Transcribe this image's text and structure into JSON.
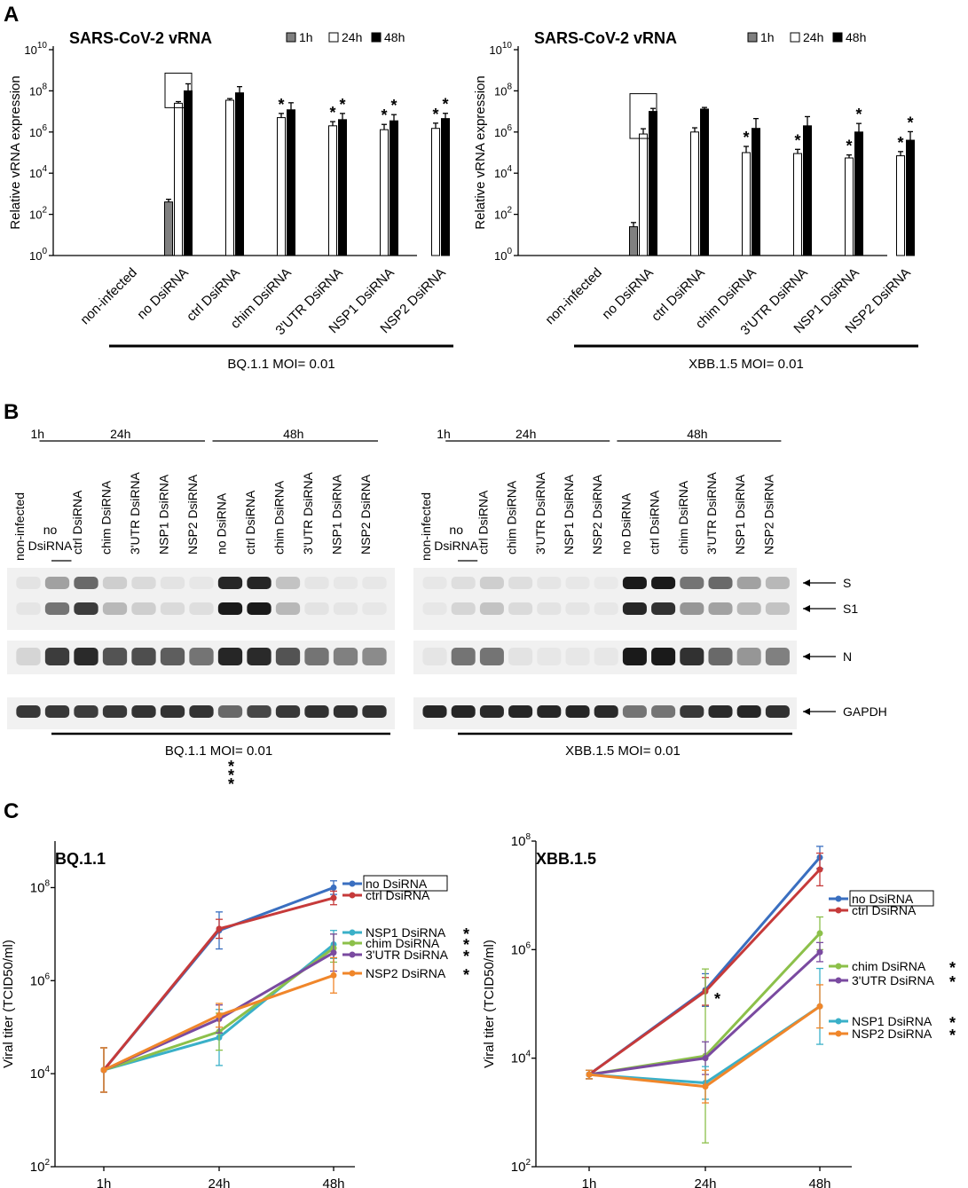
{
  "panel_labels": [
    "A",
    "B",
    "C"
  ],
  "colors": {
    "bar_1h": "#808080",
    "bar_24h": "#ffffff",
    "bar_48h": "#000000",
    "no_dsirna": "#3a6fc0",
    "ctrl_dsirna": "#c63a3a",
    "nsp1_dsirna": "#3ab0c8",
    "chim_dsirna": "#8cc04a",
    "utr_dsirna": "#7a4aa0",
    "nsp2_dsirna": "#f0862a"
  },
  "chart_data": [
    {
      "panel": "A",
      "type": "bar",
      "title": "SARS-CoV-2 vRNA",
      "ylabel": "Relative vRNA expression",
      "yscale": "log10",
      "ylim_exp": [
        0,
        10
      ],
      "yticks": [
        {
          "b": "10",
          "e": "0"
        },
        {
          "b": "10",
          "e": "2"
        },
        {
          "b": "10",
          "e": "4"
        },
        {
          "b": "10",
          "e": "6"
        },
        {
          "b": "10",
          "e": "8"
        },
        {
          "b": "10",
          "e": "10"
        }
      ],
      "legend": [
        "1h",
        "24h",
        "48h"
      ],
      "categories": [
        "non-infected",
        "no DsiRNA",
        "ctrl DsiRNA",
        "chim DsiRNA",
        "3'UTR DsiRNA",
        "NSP1 DsiRNA",
        "NSP2 DsiRNA"
      ],
      "series": [
        {
          "name": "1h",
          "values": [
            null,
            400,
            null,
            null,
            null,
            null,
            null
          ],
          "err": [
            null,
            1.35,
            null,
            null,
            null,
            null,
            null
          ]
        },
        {
          "name": "24h",
          "values": [
            null,
            25000000.0,
            35000000.0,
            5000000.0,
            2000000.0,
            1300000.0,
            1500000.0
          ],
          "err": [
            null,
            1.2,
            1.2,
            1.6,
            1.6,
            1.8,
            1.8
          ]
        },
        {
          "name": "48h",
          "values": [
            null,
            100000000.0,
            80000000.0,
            12000000.0,
            4000000.0,
            3500000.0,
            4500000.0
          ],
          "err": [
            null,
            2.2,
            2.0,
            2.2,
            2.0,
            2.0,
            1.8
          ]
        }
      ],
      "significant": [
        {
          "cat": 3,
          "series": [
            1
          ]
        },
        {
          "cat": 4,
          "series": [
            1,
            2
          ]
        },
        {
          "cat": 5,
          "series": [
            1,
            2
          ]
        },
        {
          "cat": 6,
          "series": [
            1,
            2
          ]
        }
      ],
      "boxed_category": 1,
      "condition": "BQ.1.1 MOI= 0.01"
    },
    {
      "panel": "A",
      "type": "bar",
      "title": "SARS-CoV-2 vRNA",
      "ylabel": "Relative vRNA expression",
      "yscale": "log10",
      "ylim_exp": [
        0,
        10
      ],
      "yticks": [
        {
          "b": "10",
          "e": "0"
        },
        {
          "b": "10",
          "e": "2"
        },
        {
          "b": "10",
          "e": "4"
        },
        {
          "b": "10",
          "e": "6"
        },
        {
          "b": "10",
          "e": "8"
        },
        {
          "b": "10",
          "e": "10"
        }
      ],
      "legend": [
        "1h",
        "24h",
        "48h"
      ],
      "categories": [
        "non-infected",
        "no DsiRNA",
        "ctrl DsiRNA",
        "chim DsiRNA",
        "3'UTR DsiRNA",
        "NSP1 DsiRNA",
        "NSP2 DsiRNA"
      ],
      "series": [
        {
          "name": "1h",
          "values": [
            1,
            25,
            null,
            null,
            null,
            null,
            null
          ],
          "err": [
            null,
            1.6,
            null,
            null,
            null,
            null,
            null
          ]
        },
        {
          "name": "24h",
          "values": [
            1,
            800000.0,
            1000000.0,
            100000.0,
            90000.0,
            55000.0,
            70000.0
          ],
          "err": [
            null,
            1.8,
            1.6,
            2.0,
            1.6,
            1.4,
            1.6
          ]
        },
        {
          "name": "48h",
          "values": [
            1,
            10000000.0,
            13000000.0,
            1500000.0,
            2000000.0,
            1000000.0,
            400000.0
          ],
          "err": [
            null,
            1.4,
            1.2,
            3.0,
            2.8,
            2.6,
            2.6
          ]
        }
      ],
      "significant": [
        {
          "cat": 3,
          "series": [
            1
          ]
        },
        {
          "cat": 4,
          "series": [
            1
          ]
        },
        {
          "cat": 5,
          "series": [
            1,
            2
          ]
        },
        {
          "cat": 6,
          "series": [
            1,
            2
          ]
        }
      ],
      "boxed_category": 1,
      "condition": "XBB.1.5 MOI= 0.01"
    },
    {
      "panel": "C",
      "type": "line",
      "title": "BQ.1.1",
      "ylabel": "Viral titer (TCID50/ml)",
      "yscale": "log10",
      "ylim_exp": [
        2,
        9
      ],
      "yticks": [
        {
          "b": "10",
          "e": "2"
        },
        {
          "b": "10",
          "e": "4"
        },
        {
          "b": "10",
          "e": "6"
        },
        {
          "b": "10",
          "e": "8"
        }
      ],
      "x": [
        "1h",
        "24h",
        "48h"
      ],
      "series": [
        {
          "name": "no DsiRNA",
          "sig": "",
          "boxed": true,
          "values": [
            12000.0,
            12000000.0,
            100000000.0
          ],
          "err": [
            3,
            2.5,
            1.4
          ]
        },
        {
          "name": "ctrl DsiRNA",
          "sig": "",
          "boxed": false,
          "values": [
            12000.0,
            13000000.0,
            60000000.0
          ],
          "err": [
            3,
            1.6,
            1.4
          ]
        },
        {
          "name": "NSP1 DsiRNA",
          "sig": "*",
          "boxed": false,
          "values": [
            12000.0,
            60000.0,
            6000000.0
          ],
          "err": [
            3,
            4,
            2.0
          ]
        },
        {
          "name": "chim DsiRNA",
          "sig": "*",
          "boxed": false,
          "values": [
            12000.0,
            80000.0,
            5000000.0
          ],
          "err": [
            3,
            2.5,
            2.0
          ]
        },
        {
          "name": "3'UTR DsiRNA",
          "sig": "*",
          "boxed": false,
          "values": [
            12000.0,
            150000.0,
            4000000.0
          ],
          "err": [
            3,
            2.0,
            2.5
          ]
        },
        {
          "name": "NSP2 DsiRNA",
          "sig": "*",
          "boxed": false,
          "values": [
            12000.0,
            180000.0,
            1300000.0
          ],
          "err": [
            3,
            1.8,
            2.4
          ]
        }
      ],
      "sig_at_24h": [
        "*",
        "*",
        "*"
      ]
    },
    {
      "panel": "C",
      "type": "line",
      "title": "XBB.1.5",
      "ylabel": "Viral titer (TCID50/ml)",
      "yscale": "log10",
      "ylim_exp": [
        2,
        8
      ],
      "yticks": [
        {
          "b": "10",
          "e": "2"
        },
        {
          "b": "10",
          "e": "4"
        },
        {
          "b": "10",
          "e": "6"
        },
        {
          "b": "10",
          "e": "8"
        }
      ],
      "x": [
        "1h",
        "24h",
        "48h"
      ],
      "series": [
        {
          "name": "no DsiRNA",
          "sig": "",
          "boxed": true,
          "values": [
            5000.0,
            180000.0,
            50000000.0
          ],
          "err": [
            1.2,
            2.0,
            1.6
          ]
        },
        {
          "name": "ctrl DsiRNA",
          "sig": "",
          "boxed": false,
          "values": [
            5000.0,
            170000.0,
            30000000.0
          ],
          "err": [
            1.2,
            1.8,
            2.0
          ]
        },
        {
          "name": "chim DsiRNA",
          "sig": "*",
          "boxed": false,
          "values": [
            5000.0,
            11000.0,
            2000000.0
          ],
          "err": [
            1.2,
            40,
            2.0
          ]
        },
        {
          "name": "3'UTR DsiRNA",
          "sig": "*",
          "boxed": false,
          "values": [
            5000.0,
            10000.0,
            900000.0
          ],
          "err": [
            1.2,
            2.0,
            1.5
          ]
        },
        {
          "name": "NSP1 DsiRNA",
          "sig": "*",
          "boxed": false,
          "values": [
            5000.0,
            3500.0,
            90000.0
          ],
          "err": [
            1.2,
            2.0,
            5.0
          ]
        },
        {
          "name": "NSP2 DsiRNA",
          "sig": "*",
          "boxed": false,
          "values": [
            5000.0,
            3000.0,
            90000.0
          ],
          "err": [
            1.2,
            2.0,
            2.5
          ]
        }
      ],
      "sig_at_24h": [
        "*"
      ]
    }
  ],
  "western_blot": {
    "lane_labels": [
      "non-infected",
      "no DsiRNA",
      "ctrl DsiRNA",
      "chim DsiRNA",
      "3'UTR DsiRNA",
      "NSP1 DsiRNA",
      "NSP2 DsiRNA",
      "no DsiRNA",
      "ctrl DsiRNA",
      "chim DsiRNA",
      "3'UTR DsiRNA",
      "NSP1 DsiRNA",
      "NSP2 DsiRNA"
    ],
    "no_dsirna_split": [
      "no",
      "DsiRNA"
    ],
    "timepoints": [
      "1h",
      "24h",
      "48h"
    ],
    "bands": [
      "S",
      "S1",
      "N",
      "GAPDH"
    ],
    "blots": [
      {
        "condition": "BQ.1.1 MOI= 0.01",
        "S": [
          0.06,
          0.35,
          0.6,
          0.15,
          0.1,
          0.06,
          0.04,
          0.9,
          0.9,
          0.2,
          0.05,
          0.04,
          0.04
        ],
        "S1": [
          0.05,
          0.55,
          0.8,
          0.25,
          0.15,
          0.1,
          0.08,
          0.95,
          0.95,
          0.25,
          0.06,
          0.05,
          0.04
        ],
        "N": [
          0.12,
          0.8,
          0.88,
          0.7,
          0.72,
          0.65,
          0.55,
          0.9,
          0.88,
          0.7,
          0.55,
          0.5,
          0.45
        ],
        "GAPDH": [
          0.82,
          0.82,
          0.8,
          0.82,
          0.84,
          0.84,
          0.84,
          0.6,
          0.75,
          0.82,
          0.85,
          0.85,
          0.85
        ]
      },
      {
        "condition": "XBB.1.5 MOI= 0.01",
        "S": [
          0.04,
          0.08,
          0.15,
          0.08,
          0.05,
          0.04,
          0.03,
          0.95,
          0.95,
          0.55,
          0.6,
          0.35,
          0.25
        ],
        "S1": [
          0.04,
          0.12,
          0.2,
          0.1,
          0.06,
          0.05,
          0.04,
          0.9,
          0.85,
          0.4,
          0.35,
          0.25,
          0.2
        ],
        "N": [
          0.05,
          0.55,
          0.55,
          0.06,
          0.04,
          0.04,
          0.04,
          0.95,
          0.95,
          0.85,
          0.6,
          0.4,
          0.5
        ],
        "GAPDH": [
          0.9,
          0.9,
          0.88,
          0.9,
          0.9,
          0.9,
          0.88,
          0.55,
          0.55,
          0.82,
          0.88,
          0.9,
          0.85
        ]
      }
    ]
  }
}
